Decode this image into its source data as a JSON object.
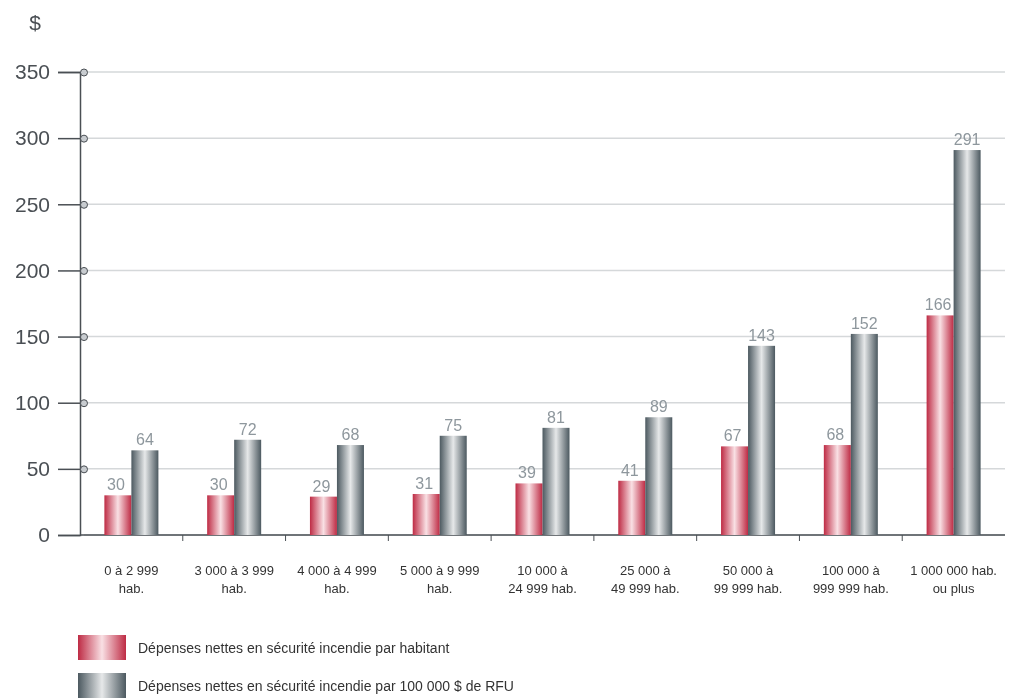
{
  "chart_data": {
    "type": "bar",
    "ylabel": "$",
    "categories": [
      "0 à 2 999\nhab.",
      "3 000 à 3 999\nhab.",
      "4 000 à 4 999\nhab.",
      "5 000 à 9 999\nhab.",
      "10 000 à\n24 999 hab.",
      "25 000 à\n49 999 hab.",
      "50 000 à\n99 999 hab.",
      "100 000 à\n999 999 hab.",
      "1 000 000 hab.\nou plus"
    ],
    "series": [
      {
        "name": "Dépenses nettes en sécurité incendie par habitant",
        "color": "#d4304c",
        "values": [
          30,
          30,
          29,
          31,
          39,
          41,
          67,
          68,
          166
        ]
      },
      {
        "name": "Dépenses nettes en sécurité incendie par 100 000 $ de RFU",
        "color": "#55636b",
        "values": [
          64,
          72,
          68,
          75,
          81,
          89,
          143,
          152,
          291
        ]
      }
    ],
    "ylim": [
      0,
      350
    ],
    "yticks": [
      0,
      50,
      100,
      150,
      200,
      250,
      300,
      350
    ],
    "grid": "y",
    "data_labels": true,
    "legend": "bottom"
  }
}
